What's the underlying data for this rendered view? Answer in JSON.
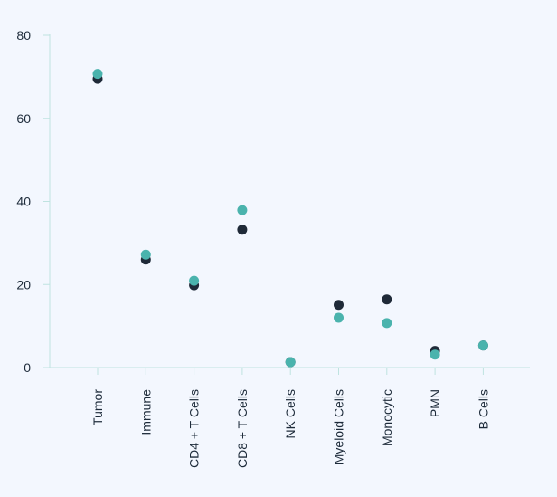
{
  "chart_data": {
    "type": "scatter",
    "title": "",
    "xlabel": "",
    "ylabel": "",
    "ylim": [
      0,
      80
    ],
    "yticks": [
      0,
      20,
      40,
      60,
      80
    ],
    "grid": false,
    "legend": "none",
    "categories": [
      "Tumor",
      "Immune",
      "CD4 + T Cells",
      "CD8 + T Cells",
      "NK Cells",
      "Myeloid Cells",
      "Monocytic",
      "PMN",
      "B Cells"
    ],
    "series": [
      {
        "color": "#1f2a38",
        "values": [
          69.5,
          26.0,
          19.8,
          33.2,
          1.3,
          15.1,
          16.4,
          4.0,
          5.3
        ]
      },
      {
        "color": "#4ab3ad",
        "values": [
          70.7,
          27.2,
          20.9,
          37.9,
          1.3,
          12.0,
          10.7,
          3.1,
          5.3
        ]
      }
    ],
    "axis_color": "#bfe3e0"
  }
}
